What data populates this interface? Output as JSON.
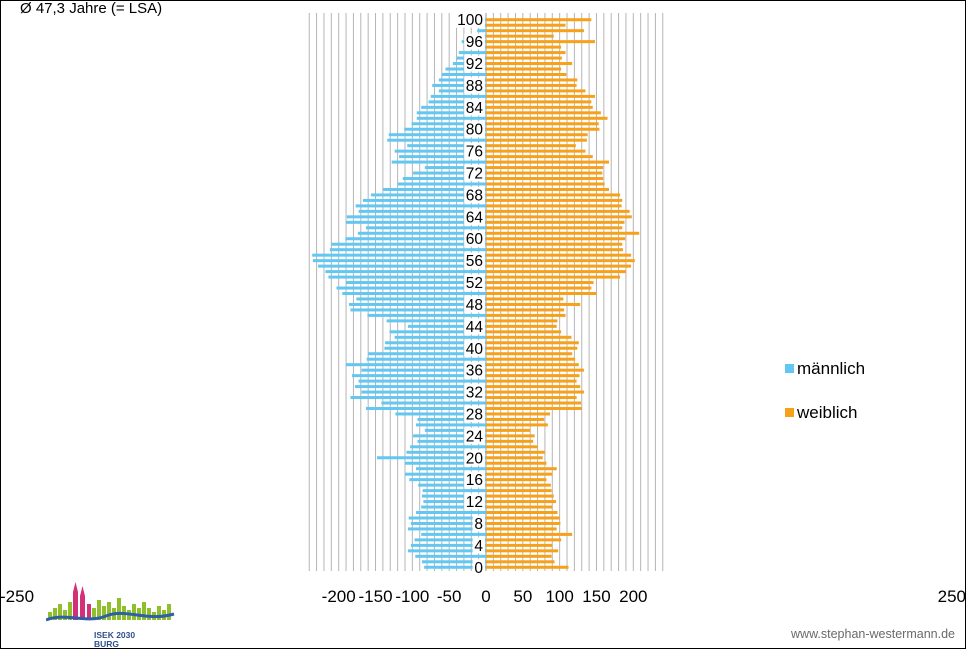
{
  "subtitle": "Ø 47,3 Jahre  (= LSA)",
  "credit": "www.stephan-westermann.de",
  "logo": {
    "line1": "ISEK 2030",
    "line2": "BURG"
  },
  "colors": {
    "male": "#63c7f2",
    "female": "#f7a11a",
    "grid": "#b5b5b5"
  },
  "chart_data": {
    "type": "bar",
    "orientation": "horizontal",
    "population_pyramid": true,
    "xlim": [
      -250,
      250
    ],
    "xticks": [
      -250,
      -200,
      -150,
      -100,
      -50,
      0,
      50,
      100,
      150,
      200,
      250
    ],
    "xtick_labels": [
      "-250",
      "-200",
      "-150",
      "-100",
      "-50",
      "0",
      "50",
      "100",
      "150",
      "200",
      "250"
    ],
    "ytick_labels": [
      "0",
      "4",
      "8",
      "12",
      "16",
      "20",
      "24",
      "28",
      "32",
      "36",
      "40",
      "44",
      "48",
      "52",
      "56",
      "60",
      "64",
      "68",
      "72",
      "76",
      "80",
      "84",
      "88",
      "92",
      "96",
      "100"
    ],
    "ages": [
      0,
      1,
      2,
      3,
      4,
      5,
      6,
      7,
      8,
      9,
      10,
      11,
      12,
      13,
      14,
      15,
      16,
      17,
      18,
      19,
      20,
      21,
      22,
      23,
      24,
      25,
      26,
      27,
      28,
      29,
      30,
      31,
      32,
      33,
      34,
      35,
      36,
      37,
      38,
      39,
      40,
      41,
      42,
      43,
      44,
      45,
      46,
      47,
      48,
      49,
      50,
      51,
      52,
      53,
      54,
      55,
      56,
      57,
      58,
      59,
      60,
      61,
      62,
      63,
      64,
      65,
      66,
      67,
      68,
      69,
      70,
      71,
      72,
      73,
      74,
      75,
      76,
      77,
      78,
      79,
      80,
      81,
      82,
      83,
      84,
      85,
      86,
      87,
      88,
      89,
      90,
      91,
      92,
      93,
      94,
      95,
      96,
      97,
      98,
      99,
      100
    ],
    "legend_position": "right",
    "series": [
      {
        "name": "männlich",
        "values": [
          -84,
          -87,
          -96,
          -106,
          -102,
          -97,
          -88,
          -106,
          -102,
          -105,
          -95,
          -88,
          -85,
          -87,
          -86,
          -92,
          -104,
          -110,
          -95,
          -110,
          -148,
          -108,
          -103,
          -93,
          -99,
          -83,
          -95,
          -93,
          -123,
          -163,
          -142,
          -184,
          -169,
          -178,
          -173,
          -182,
          -169,
          -190,
          -162,
          -160,
          -138,
          -137,
          -124,
          -131,
          -106,
          -135,
          -161,
          -184,
          -186,
          -176,
          -195,
          -203,
          -190,
          -214,
          -218,
          -228,
          -235,
          -236,
          -212,
          -210,
          -191,
          -174,
          -163,
          -190,
          -189,
          -173,
          -177,
          -167,
          -156,
          -140,
          -120,
          -113,
          -99,
          -83,
          -128,
          -118,
          -124,
          -107,
          -134,
          -132,
          -111,
          -101,
          -94,
          -94,
          -88,
          -78,
          -75,
          -64,
          -73,
          -64,
          -60,
          -55,
          -45,
          -40,
          -37,
          -30,
          -33,
          -18,
          -12,
          -4,
          -2
        ],
        "color": "#63c7f2"
      },
      {
        "name": "weiblich",
        "values": [
          112,
          93,
          89,
          98,
          90,
          102,
          117,
          96,
          101,
          100,
          97,
          90,
          95,
          92,
          89,
          88,
          82,
          90,
          96,
          82,
          77,
          80,
          70,
          64,
          66,
          60,
          84,
          79,
          87,
          130,
          129,
          123,
          133,
          128,
          123,
          127,
          133,
          126,
          121,
          117,
          124,
          126,
          116,
          102,
          96,
          97,
          108,
          106,
          128,
          105,
          150,
          143,
          146,
          182,
          190,
          197,
          202,
          197,
          186,
          185,
          189,
          208,
          185,
          188,
          198,
          195,
          184,
          185,
          182,
          167,
          161,
          159,
          158,
          159,
          167,
          145,
          135,
          122,
          137,
          138,
          154,
          153,
          165,
          156,
          145,
          143,
          148,
          135,
          123,
          124,
          109,
          102,
          117,
          103,
          108,
          102,
          148,
          92,
          133,
          108,
          143
        ],
        "color": "#f7a11a"
      }
    ]
  }
}
